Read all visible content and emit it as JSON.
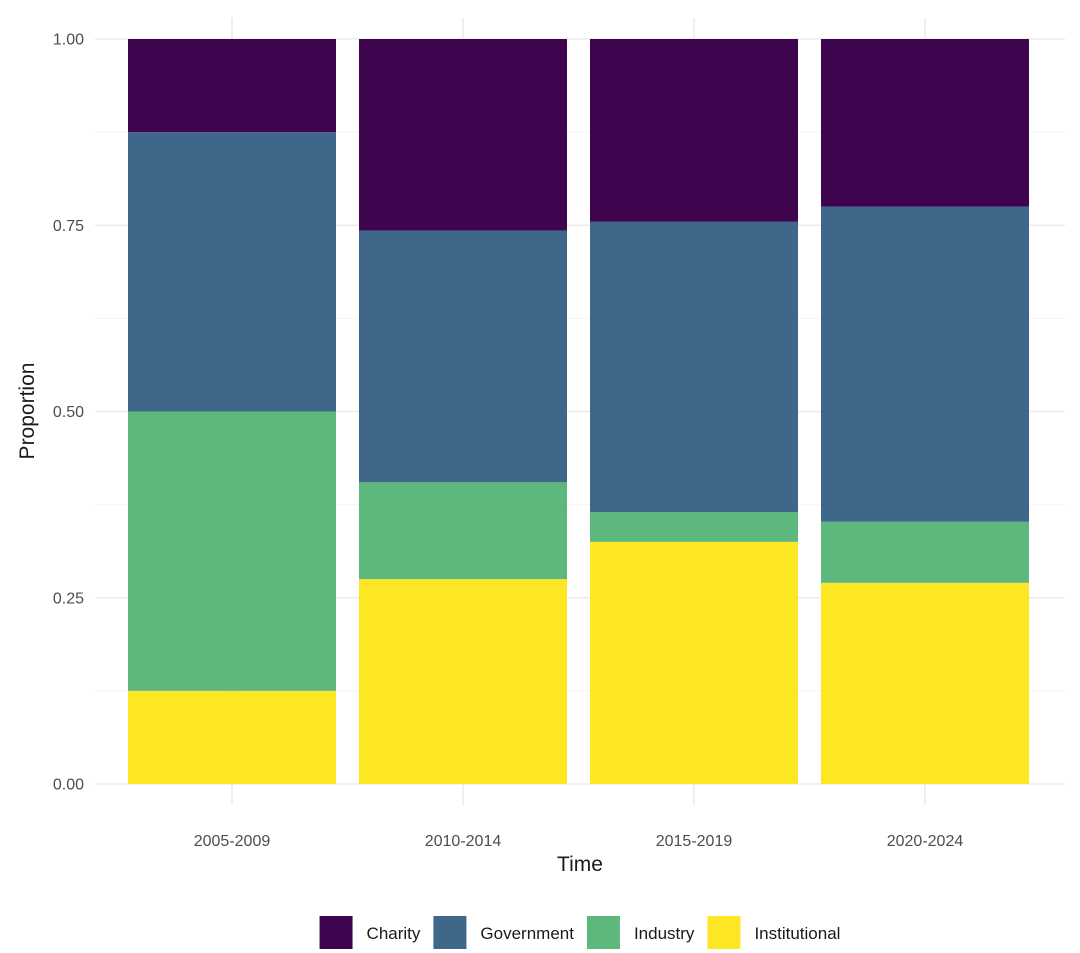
{
  "chart_data": {
    "type": "bar",
    "stacked": true,
    "title": "",
    "xlabel": "Time",
    "ylabel": "Proportion",
    "ylim": [
      0,
      1
    ],
    "yticks": [
      0,
      0.25,
      0.5,
      0.75,
      1
    ],
    "ytick_labels": [
      "0.00",
      "0.25",
      "0.50",
      "0.75",
      "1.00"
    ],
    "grid": true,
    "legend_position": "bottom",
    "categories": [
      "2005-2009",
      "2010-2014",
      "2015-2019",
      "2020-2024"
    ],
    "series": [
      {
        "name": "Institutional",
        "color": "#FDE725",
        "values": [
          0.125,
          0.275,
          0.325,
          0.27
        ]
      },
      {
        "name": "Industry",
        "color": "#5DB87E",
        "values": [
          0.375,
          0.13,
          0.04,
          0.082
        ]
      },
      {
        "name": "Government",
        "color": "#3F678A",
        "values": [
          0.375,
          0.338,
          0.39,
          0.423
        ]
      },
      {
        "name": "Charity",
        "color": "#3E054E",
        "values": [
          0.125,
          0.257,
          0.245,
          0.225
        ]
      }
    ],
    "legend_order": [
      "Charity",
      "Government",
      "Industry",
      "Institutional"
    ]
  }
}
